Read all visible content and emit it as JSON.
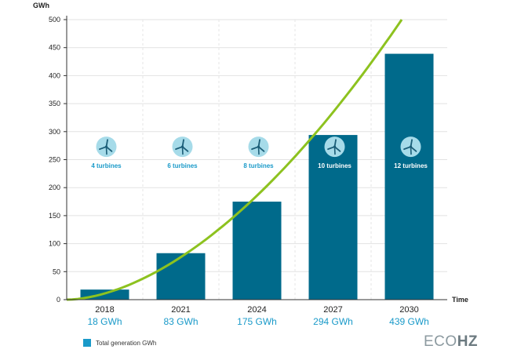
{
  "chart_data": {
    "type": "bar",
    "ylabel": "GWh",
    "xlabel": "Time",
    "ylim": [
      0,
      500
    ],
    "yticks": [
      0,
      50,
      100,
      150,
      200,
      250,
      300,
      350,
      400,
      450,
      500
    ],
    "categories": [
      "2018",
      "2021",
      "2024",
      "2027",
      "2030"
    ],
    "values": [
      18,
      83,
      175,
      294,
      439
    ],
    "value_labels": [
      "18 GWh",
      "83 GWh",
      "175 GWh",
      "294 GWh",
      "439 GWh"
    ],
    "turbine_labels": [
      "4 turbines",
      "6 turbines",
      "8 turbines",
      "10 turbines",
      "12 turbines"
    ],
    "turbine_icon_level": 273,
    "series": [
      {
        "name": "Total generation GWh",
        "values": [
          18,
          83,
          175,
          294,
          439
        ]
      }
    ],
    "trend_curve": {
      "type": "line",
      "color": "#8dc21f",
      "start": 0,
      "end": 500
    },
    "grid": true,
    "legend_position": "bottom-left",
    "colors": {
      "bar": "#006a8b",
      "curve": "#8dc21f",
      "value_text": "#1a9ac9",
      "icon_bg": "#a6dbe9",
      "icon_fg": "#1b5e78"
    }
  },
  "legend": {
    "label": "Total generation GWh"
  },
  "brand": {
    "part1": "ECO",
    "part2": "HZ"
  },
  "icon": "wind-turbine-icon"
}
